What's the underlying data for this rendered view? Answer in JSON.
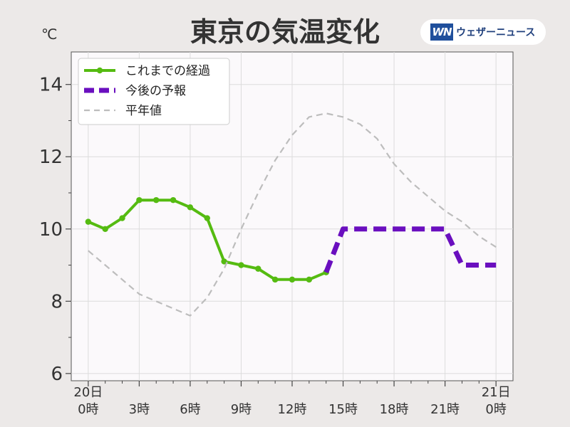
{
  "header": {
    "title": "東京の気温変化",
    "unit": "℃",
    "brand_logo": "WN",
    "brand_name": "ウェザーニュース"
  },
  "chart_data": {
    "type": "line",
    "title": "東京の気温変化",
    "ylabel": "℃",
    "ylim": [
      5.8,
      14.9
    ],
    "yticks": [
      6,
      8,
      10,
      12,
      14
    ],
    "grid": true,
    "legend_placement": "top-left",
    "x_range_hours": [
      -1,
      25
    ],
    "x_ticks": [
      {
        "hour": 0,
        "lines": [
          "20日",
          "0時"
        ]
      },
      {
        "hour": 3,
        "lines": [
          "3時"
        ]
      },
      {
        "hour": 6,
        "lines": [
          "6時"
        ]
      },
      {
        "hour": 9,
        "lines": [
          "9時"
        ]
      },
      {
        "hour": 12,
        "lines": [
          "12時"
        ]
      },
      {
        "hour": 15,
        "lines": [
          "15時"
        ]
      },
      {
        "hour": 18,
        "lines": [
          "18時"
        ]
      },
      {
        "hour": 21,
        "lines": [
          "21時"
        ]
      },
      {
        "hour": 24,
        "lines": [
          "21日",
          "0時"
        ]
      }
    ],
    "series": [
      {
        "name": "これまでの経過",
        "style": "solid-markers",
        "color": "#55bb11",
        "x": [
          0,
          1,
          2,
          3,
          4,
          5,
          6,
          7,
          8,
          9,
          10,
          11,
          12,
          13,
          14
        ],
        "y": [
          10.2,
          10.0,
          10.3,
          10.8,
          10.8,
          10.8,
          10.6,
          10.3,
          9.1,
          9.0,
          8.9,
          8.6,
          8.6,
          8.6,
          8.8
        ]
      },
      {
        "name": "今後の予報",
        "style": "thick-dashed",
        "color": "#6a0fbf",
        "x": [
          14,
          15,
          16,
          17,
          18,
          19,
          20,
          21,
          22,
          23,
          24
        ],
        "y": [
          8.8,
          10.0,
          10.0,
          10.0,
          10.0,
          10.0,
          10.0,
          10.0,
          9.0,
          9.0,
          9.0
        ]
      },
      {
        "name": "平年値",
        "style": "dashed",
        "color": "#bdbdbd",
        "x": [
          0,
          1,
          2,
          3,
          4,
          5,
          6,
          7,
          8,
          9,
          10,
          11,
          12,
          13,
          14,
          15,
          16,
          17,
          18,
          19,
          20,
          21,
          22,
          23,
          24
        ],
        "y": [
          9.4,
          9.0,
          8.6,
          8.2,
          8.0,
          7.8,
          7.6,
          8.1,
          8.9,
          10.0,
          11.0,
          11.9,
          12.6,
          13.1,
          13.2,
          13.1,
          12.9,
          12.5,
          11.8,
          11.3,
          10.9,
          10.5,
          10.2,
          9.8,
          9.5
        ]
      }
    ]
  }
}
